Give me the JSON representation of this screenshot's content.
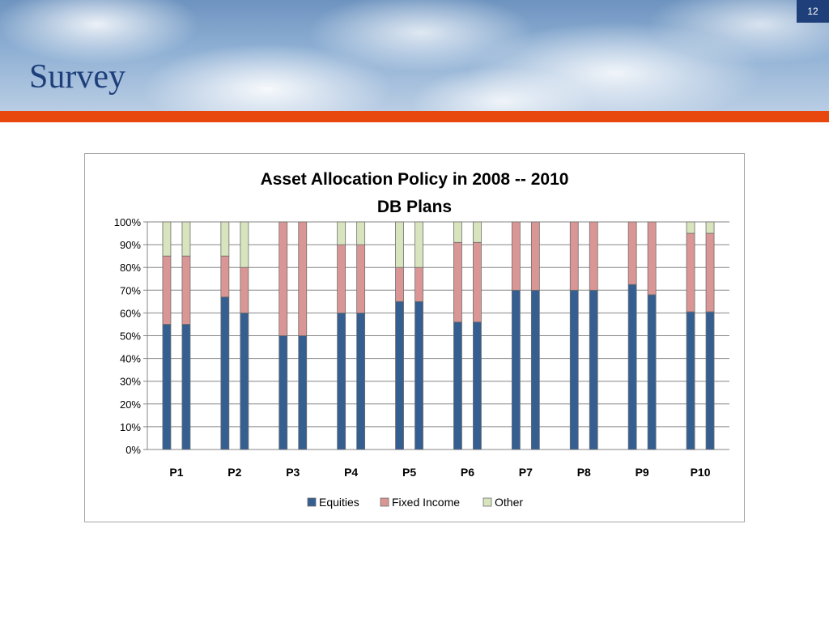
{
  "slide": {
    "title": "Survey",
    "page_number": "12",
    "accent_color": "#e8470e",
    "title_color": "#1f3f7a"
  },
  "chart_data": {
    "type": "bar",
    "stacked": true,
    "title": "Asset Allocation Policy in 2008 -- 2010",
    "subtitle": "DB Plans",
    "categories": [
      "P1",
      "P2",
      "P3",
      "P4",
      "P5",
      "P6",
      "P7",
      "P8",
      "P9",
      "P10"
    ],
    "bars_per_category": 2,
    "y_ticks": [
      "0%",
      "10%",
      "20%",
      "30%",
      "40%",
      "50%",
      "60%",
      "70%",
      "80%",
      "90%",
      "100%"
    ],
    "ylim": [
      0,
      100
    ],
    "grid": true,
    "legend_position": "bottom",
    "series": [
      {
        "name": "Equities",
        "color": "#355e91",
        "values": [
          [
            55,
            55
          ],
          [
            67,
            60
          ],
          [
            50,
            50
          ],
          [
            60,
            60
          ],
          [
            65,
            65
          ],
          [
            56,
            56
          ],
          [
            70,
            70
          ],
          [
            70,
            70
          ],
          [
            72.5,
            68
          ],
          [
            60.5,
            60.5
          ]
        ]
      },
      {
        "name": "Fixed Income",
        "color": "#d99694",
        "values": [
          [
            30,
            30
          ],
          [
            18,
            20
          ],
          [
            50,
            50
          ],
          [
            30,
            30
          ],
          [
            15,
            15
          ],
          [
            35,
            35
          ],
          [
            30,
            30
          ],
          [
            30,
            30
          ],
          [
            27.5,
            32
          ],
          [
            34.5,
            34.5
          ]
        ]
      },
      {
        "name": "Other",
        "color": "#d7e4bd",
        "values": [
          [
            15,
            15
          ],
          [
            15,
            20
          ],
          [
            0,
            0
          ],
          [
            10,
            10
          ],
          [
            20,
            20
          ],
          [
            9,
            9
          ],
          [
            0,
            0
          ],
          [
            0,
            0
          ],
          [
            0,
            0
          ],
          [
            5,
            5
          ]
        ]
      }
    ]
  }
}
